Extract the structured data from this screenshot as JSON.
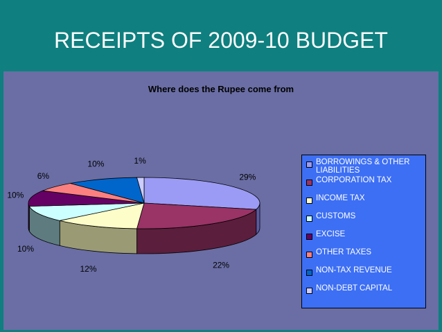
{
  "slide": {
    "title": "RECEIPTS OF 2009-10 BUDGET"
  },
  "chart_data": {
    "type": "pie",
    "title": "Where does the Rupee come from",
    "three_d": true,
    "legend_position": "right",
    "slices": [
      {
        "label": "BORROWINGS & OTHER LIABILITIES",
        "value": 29,
        "display": "29%",
        "top_color": "#9b9bf5",
        "side_color": "#5a5aa0"
      },
      {
        "label": "CORPORATION TAX",
        "value": 22,
        "display": "22%",
        "top_color": "#9a3366",
        "side_color": "#5c1e3d"
      },
      {
        "label": "INCOME TAX",
        "value": 12,
        "display": "12%",
        "top_color": "#fdfdc9",
        "side_color": "#9a9a75"
      },
      {
        "label": "CUSTOMS",
        "value": 10,
        "display": "10%",
        "top_color": "#ccffff",
        "side_color": "#5e7c80"
      },
      {
        "label": "EXCISE",
        "value": 10,
        "display": "10%",
        "top_color": "#650065",
        "side_color": "#3a003a"
      },
      {
        "label": "OTHER TAXES",
        "value": 6,
        "display": "6%",
        "top_color": "#fd8080",
        "side_color": "#a04848"
      },
      {
        "label": "NON-TAX REVENUE",
        "value": 10,
        "display": "10%",
        "top_color": "#0066cc",
        "side_color": "#003a7a"
      },
      {
        "label": "NON-DEBT CAPITAL",
        "value": 1,
        "display": "1%",
        "top_color": "#ccccff",
        "side_color": "#8080b0"
      }
    ]
  }
}
